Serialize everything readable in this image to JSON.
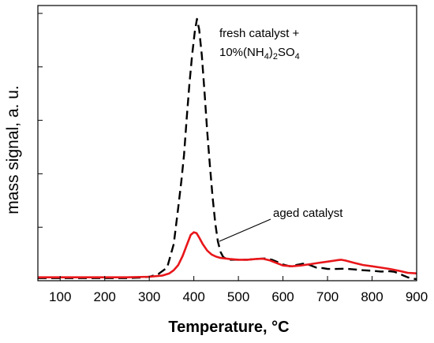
{
  "chart_data": {
    "type": "line",
    "xlabel": "Temperature, °C",
    "ylabel": "mass signal, a. u.",
    "xlim": [
      50,
      900
    ],
    "ylim": [
      0,
      100
    ],
    "x_ticks": [
      100,
      200,
      300,
      400,
      500,
      600,
      700,
      800,
      900
    ],
    "y_tick_labels_shown": false,
    "grid": false,
    "series": [
      {
        "color": "#000000",
        "dash": "dashed",
        "points": [
          [
            50,
            1
          ],
          [
            100,
            1
          ],
          [
            150,
            1
          ],
          [
            200,
            1
          ],
          [
            250,
            1
          ],
          [
            280,
            1.2
          ],
          [
            300,
            1.5
          ],
          [
            320,
            2.5
          ],
          [
            340,
            5
          ],
          [
            355,
            14
          ],
          [
            365,
            28
          ],
          [
            372,
            38
          ],
          [
            378,
            48
          ],
          [
            384,
            62
          ],
          [
            390,
            75
          ],
          [
            396,
            86
          ],
          [
            402,
            95
          ],
          [
            407,
            100
          ],
          [
            412,
            96
          ],
          [
            418,
            86
          ],
          [
            424,
            72
          ],
          [
            430,
            57
          ],
          [
            436,
            44
          ],
          [
            442,
            32
          ],
          [
            448,
            22
          ],
          [
            454,
            15
          ],
          [
            460,
            11
          ],
          [
            466,
            9
          ],
          [
            472,
            8.5
          ],
          [
            480,
            8
          ],
          [
            490,
            8
          ],
          [
            500,
            8
          ],
          [
            520,
            8
          ],
          [
            540,
            8.3
          ],
          [
            560,
            8.5
          ],
          [
            575,
            8
          ],
          [
            590,
            7
          ],
          [
            600,
            6.2
          ],
          [
            615,
            5.5
          ],
          [
            630,
            6
          ],
          [
            645,
            6.5
          ],
          [
            660,
            6
          ],
          [
            675,
            5
          ],
          [
            690,
            4.8
          ],
          [
            700,
            4.5
          ],
          [
            720,
            4.5
          ],
          [
            740,
            4.6
          ],
          [
            760,
            4.3
          ],
          [
            780,
            4
          ],
          [
            800,
            3.8
          ],
          [
            820,
            3.5
          ],
          [
            840,
            3.6
          ],
          [
            850,
            3.4
          ],
          [
            860,
            2.8
          ],
          [
            870,
            2
          ],
          [
            880,
            1.3
          ],
          [
            890,
            0.8
          ],
          [
            900,
            0.6
          ]
        ]
      },
      {
        "color": "#e8161a",
        "dash": "solid",
        "points": [
          [
            50,
            1.3
          ],
          [
            100,
            1.3
          ],
          [
            150,
            1.3
          ],
          [
            200,
            1.3
          ],
          [
            250,
            1.3
          ],
          [
            300,
            1.5
          ],
          [
            330,
            2
          ],
          [
            345,
            2.8
          ],
          [
            355,
            4
          ],
          [
            365,
            6
          ],
          [
            375,
            9.5
          ],
          [
            385,
            14
          ],
          [
            393,
            17.5
          ],
          [
            400,
            18.5
          ],
          [
            406,
            18.2
          ],
          [
            412,
            16.5
          ],
          [
            420,
            14
          ],
          [
            430,
            11.5
          ],
          [
            440,
            10
          ],
          [
            450,
            9.2
          ],
          [
            460,
            8.7
          ],
          [
            480,
            8.3
          ],
          [
            500,
            8
          ],
          [
            520,
            8
          ],
          [
            540,
            8.3
          ],
          [
            555,
            8.4
          ],
          [
            570,
            7.8
          ],
          [
            585,
            6.8
          ],
          [
            600,
            5.8
          ],
          [
            620,
            5.5
          ],
          [
            640,
            5.8
          ],
          [
            660,
            6.3
          ],
          [
            680,
            6.8
          ],
          [
            700,
            7.3
          ],
          [
            720,
            7.8
          ],
          [
            730,
            8
          ],
          [
            740,
            7.7
          ],
          [
            760,
            6.8
          ],
          [
            780,
            6
          ],
          [
            800,
            5.5
          ],
          [
            820,
            5
          ],
          [
            840,
            4.5
          ],
          [
            860,
            3.8
          ],
          [
            880,
            3
          ],
          [
            900,
            2.8
          ]
        ]
      }
    ],
    "annotations": [
      {
        "text_line1": "fresh catalyst +",
        "text_line2_parts": [
          "10%(NH",
          "4",
          ")",
          "2",
          "SO",
          "4"
        ]
      },
      {
        "text": "aged catalyst"
      }
    ]
  }
}
